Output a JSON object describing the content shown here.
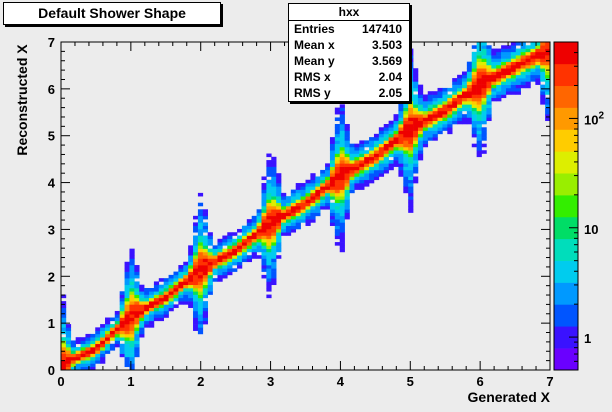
{
  "title": "Default Shower Shape",
  "stats": {
    "name": "hxx",
    "rows": [
      {
        "label": "Entries",
        "value": "147410"
      },
      {
        "label": "Mean x",
        "value": "3.503"
      },
      {
        "label": "Mean y",
        "value": "3.569"
      },
      {
        "label": "RMS x",
        "value": "2.04"
      },
      {
        "label": "RMS y",
        "value": "2.05"
      }
    ]
  },
  "chart_data": {
    "type": "heatmap",
    "title": "Default Shower Shape",
    "xlabel": "Generated X",
    "ylabel": "Reconstructed X",
    "xlim": [
      0,
      7
    ],
    "ylim": [
      0,
      7
    ],
    "x_ticks": [
      "0",
      "1",
      "2",
      "3",
      "4",
      "5",
      "6",
      "7"
    ],
    "y_ticks": [
      "0",
      "1",
      "2",
      "3",
      "4",
      "5",
      "6",
      "7"
    ],
    "z_scale": "log",
    "z_range": [
      0.5,
      500
    ],
    "z_ticks": [
      "1",
      "10",
      "10^2"
    ],
    "grid": false,
    "description_points": [
      [
        0,
        0.12
      ],
      [
        0.5,
        0.45
      ],
      [
        1.0,
        1.15
      ],
      [
        1.5,
        1.55
      ],
      [
        2.0,
        2.15
      ],
      [
        2.5,
        2.55
      ],
      [
        3.0,
        3.15
      ],
      [
        3.5,
        3.55
      ],
      [
        4.0,
        4.15
      ],
      [
        4.5,
        4.55
      ],
      [
        5.0,
        5.15
      ],
      [
        5.5,
        5.55
      ],
      [
        6.0,
        6.1
      ],
      [
        7.0,
        6.85
      ]
    ]
  },
  "palette": [
    "#6a00ff",
    "#3a12ff",
    "#0055ff",
    "#0099ff",
    "#00ccee",
    "#00ddbb",
    "#00dd66",
    "#33ee00",
    "#99ee00",
    "#ddee00",
    "#ffcc00",
    "#ff9900",
    "#ff6600",
    "#ff3300",
    "#ee0000"
  ]
}
